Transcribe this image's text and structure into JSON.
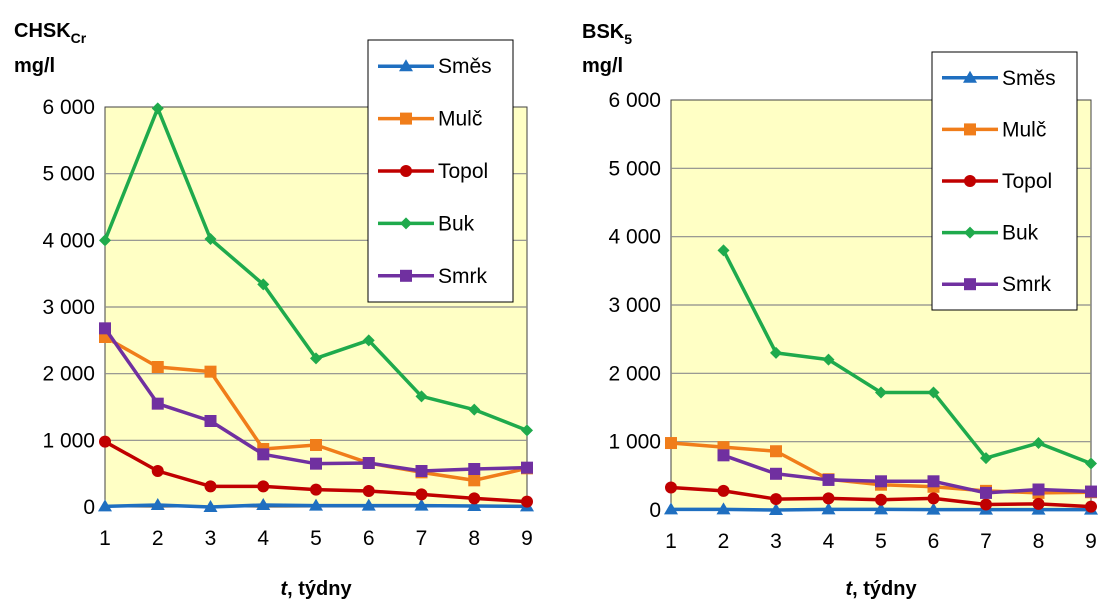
{
  "colors": {
    "plot_bg": "#FFFFC5",
    "grid": "#8C8C8C",
    "Směs": "#1F6FC0",
    "Mulč": "#F07D1A",
    "Topol": "#C00000",
    "Buk": "#1FAA4C",
    "Smrk": "#7030A0"
  },
  "chart_data": [
    {
      "type": "line",
      "ylabel_main": "CHSK",
      "ylabel_sub": "Cr",
      "yunit": "mg/l",
      "xlabel_italic": "t",
      "xlabel_rest": ", týdny",
      "xlim": [
        1,
        9
      ],
      "ylim": [
        0,
        6000
      ],
      "yticks": [
        0,
        1000,
        2000,
        3000,
        4000,
        5000,
        6000
      ],
      "ytick_labels": [
        "0",
        "1 000",
        "2 000",
        "3 000",
        "4 000",
        "5 000",
        "6 000"
      ],
      "xticks": [
        1,
        2,
        3,
        4,
        5,
        6,
        7,
        8,
        9
      ],
      "xtick_labels": [
        "1",
        "2",
        "3",
        "4",
        "5",
        "6",
        "7",
        "8",
        "9"
      ],
      "grid": true,
      "legend": "top-right",
      "x": [
        1,
        2,
        3,
        4,
        5,
        6,
        7,
        8,
        9
      ],
      "series": [
        {
          "name": "Směs",
          "marker": "triangle",
          "values": [
            10,
            30,
            0,
            30,
            20,
            20,
            20,
            15,
            10
          ]
        },
        {
          "name": "Mulč",
          "marker": "square",
          "values": [
            2550,
            2100,
            2030,
            870,
            930,
            660,
            520,
            400,
            580
          ]
        },
        {
          "name": "Topol",
          "marker": "circle",
          "values": [
            980,
            540,
            310,
            310,
            260,
            240,
            190,
            130,
            80
          ]
        },
        {
          "name": "Buk",
          "marker": "diamond",
          "values": [
            4000,
            5980,
            4020,
            3340,
            2230,
            2500,
            1660,
            1460,
            1150
          ]
        },
        {
          "name": "Smrk",
          "marker": "square",
          "values": [
            2680,
            1550,
            1290,
            790,
            650,
            660,
            540,
            570,
            590
          ]
        }
      ]
    },
    {
      "type": "line",
      "ylabel_main": "BSK",
      "ylabel_sub": "5",
      "yunit": "mg/l",
      "xlabel_italic": "t",
      "xlabel_rest": ", týdny",
      "xlim": [
        1,
        9
      ],
      "ylim": [
        0,
        6000
      ],
      "yticks": [
        0,
        1000,
        2000,
        3000,
        4000,
        5000,
        6000
      ],
      "ytick_labels": [
        "0",
        "1 000",
        "2 000",
        "3 000",
        "4 000",
        "5 000",
        "6 000"
      ],
      "xticks": [
        1,
        2,
        3,
        4,
        5,
        6,
        7,
        8,
        9
      ],
      "xtick_labels": [
        "1",
        "2",
        "3",
        "4",
        "5",
        "6",
        "7",
        "8",
        "9"
      ],
      "grid": true,
      "legend": "top-right",
      "x": [
        1,
        2,
        3,
        4,
        5,
        6,
        7,
        8,
        9
      ],
      "series": [
        {
          "name": "Směs",
          "marker": "triangle",
          "values": [
            10,
            10,
            0,
            10,
            10,
            5,
            5,
            5,
            5
          ]
        },
        {
          "name": "Mulč",
          "marker": "square",
          "values": [
            980,
            920,
            860,
            450,
            370,
            340,
            280,
            250,
            260
          ]
        },
        {
          "name": "Topol",
          "marker": "circle",
          "values": [
            330,
            280,
            160,
            170,
            150,
            170,
            80,
            90,
            50
          ]
        },
        {
          "name": "Buk",
          "x": [
            2,
            3,
            4,
            5,
            6,
            7,
            8,
            9
          ],
          "values": [
            3800,
            2300,
            2200,
            1720,
            1720,
            760,
            980,
            680
          ],
          "marker": "diamond"
        },
        {
          "name": "Smrk",
          "x": [
            2,
            3,
            4,
            5,
            6,
            7,
            8,
            9
          ],
          "values": [
            800,
            530,
            440,
            420,
            420,
            250,
            300,
            270
          ],
          "marker": "square"
        }
      ]
    }
  ]
}
